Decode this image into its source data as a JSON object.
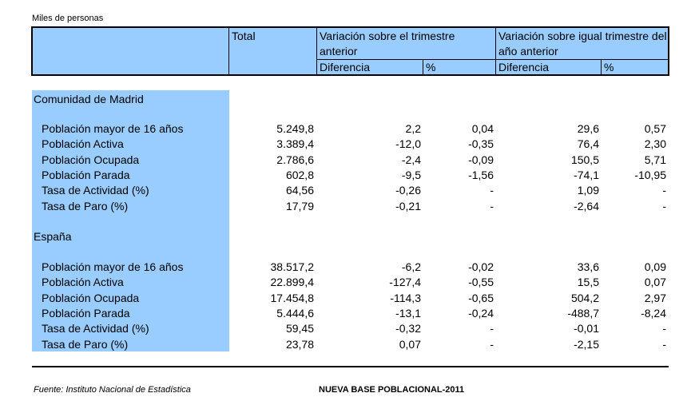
{
  "units": "Miles de personas",
  "header": {
    "total": "Total",
    "var_trim": "Variación sobre el trimestre anterior",
    "var_year": "Variación sobre igual trimestre del año anterior",
    "diferencia": "Diferencia",
    "pct": "%"
  },
  "sections": [
    {
      "title": "Comunidad de Madrid",
      "rows": [
        {
          "label": "Población mayor de 16 años",
          "total": "5.249,8",
          "d1": "2,2",
          "p1": "0,04",
          "d2": "29,6",
          "p2": "0,57"
        },
        {
          "label": "Población Activa",
          "total": "3.389,4",
          "d1": "-12,0",
          "p1": "-0,35",
          "d2": "76,4",
          "p2": "2,30"
        },
        {
          "label": "Población Ocupada",
          "total": "2.786,6",
          "d1": "-2,4",
          "p1": "-0,09",
          "d2": "150,5",
          "p2": "5,71"
        },
        {
          "label": "Población Parada",
          "total": "602,8",
          "d1": "-9,5",
          "p1": "-1,56",
          "d2": "-74,1",
          "p2": "-10,95"
        },
        {
          "label": "Tasa de Actividad (%)",
          "total": "64,56",
          "d1": "-0,26",
          "p1": "-",
          "d2": "1,09",
          "p2": "-"
        },
        {
          "label": "Tasa de Paro (%)",
          "total": "17,79",
          "d1": "-0,21",
          "p1": "-",
          "d2": "-2,64",
          "p2": "-"
        }
      ]
    },
    {
      "title": "España",
      "rows": [
        {
          "label": "Población mayor de 16 años",
          "total": "38.517,2",
          "d1": "-6,2",
          "p1": "-0,02",
          "d2": "33,6",
          "p2": "0,09"
        },
        {
          "label": "Población Activa",
          "total": "22.899,4",
          "d1": "-127,4",
          "p1": "-0,55",
          "d2": "15,5",
          "p2": "0,07"
        },
        {
          "label": "Población Ocupada",
          "total": "17.454,8",
          "d1": "-114,3",
          "p1": "-0,65",
          "d2": "504,2",
          "p2": "2,97"
        },
        {
          "label": "Población Parada",
          "total": "5.444,6",
          "d1": "-13,1",
          "p1": "-0,24",
          "d2": "-488,7",
          "p2": "-8,24"
        },
        {
          "label": "Tasa de Actividad (%)",
          "total": "59,45",
          "d1": "-0,32",
          "p1": "-",
          "d2": "-0,01",
          "p2": "-"
        },
        {
          "label": "Tasa de Paro (%)",
          "total": "23,78",
          "d1": "0,07",
          "p1": "-",
          "d2": "-2,15",
          "p2": "-"
        }
      ]
    }
  ],
  "footer": {
    "source": "Fuente: Instituto Nacional de Estadística",
    "note": "NUEVA BASE POBLACIONAL-2011"
  }
}
